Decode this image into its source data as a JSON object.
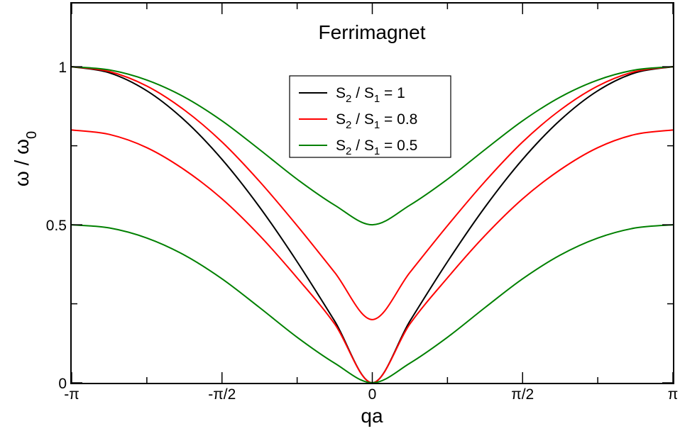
{
  "chart_data": {
    "type": "line",
    "title": "",
    "annotation": "Ferrimagnet",
    "xlabel": "qa",
    "ylabel": {
      "base": "ω / ω",
      "sub": "0"
    },
    "xlim": [
      -3.141592653589793,
      3.141592653589793
    ],
    "ylim": [
      0,
      1.2
    ],
    "x_ticks": [
      {
        "value": -3.141592653589793,
        "label": "-π"
      },
      {
        "value": -1.5707963267948966,
        "label": "-π/2"
      },
      {
        "value": 0,
        "label": "0"
      },
      {
        "value": 1.5707963267948966,
        "label": "π/2"
      },
      {
        "value": 3.141592653589793,
        "label": "π"
      }
    ],
    "y_ticks": [
      {
        "value": 0,
        "label": "0"
      },
      {
        "value": 0.5,
        "label": "0.5"
      },
      {
        "value": 1,
        "label": "1"
      }
    ],
    "grid": false,
    "legend_position": "upper-center",
    "series": [
      {
        "legend": {
          "pre": "S",
          "sub1": "2",
          "mid": " / S",
          "sub2": "1",
          "post": " = 1"
        },
        "color": "#000000",
        "branches": [
          {
            "x": [
              -3.1416,
              -2.7489,
              -2.3562,
              -1.9635,
              -1.5708,
              -1.1781,
              -0.7854,
              -0.3927,
              0,
              0.3927,
              0.7854,
              1.1781,
              1.5708,
              1.9635,
              2.3562,
              2.7489,
              3.1416
            ],
            "y": [
              1.0,
              0.981,
              0.924,
              0.831,
              0.707,
              0.556,
              0.383,
              0.195,
              0.0,
              0.195,
              0.383,
              0.556,
              0.707,
              0.831,
              0.924,
              0.981,
              1.0
            ]
          }
        ]
      },
      {
        "legend": {
          "pre": "S",
          "sub1": "2",
          "mid": " / S",
          "sub2": "1",
          "post": " = 0.8"
        },
        "color": "#ff0000",
        "branches": [
          {
            "x": [
              -3.1416,
              -2.7489,
              -2.3562,
              -1.9635,
              -1.5708,
              -1.1781,
              -0.7854,
              -0.3927,
              0,
              0.3927,
              0.7854,
              1.1781,
              1.5708,
              1.9635,
              2.3562,
              2.7489,
              3.1416
            ],
            "y": [
              1.0,
              0.985,
              0.939,
              0.863,
              0.762,
              0.637,
              0.497,
              0.349,
              0.2,
              0.349,
              0.497,
              0.637,
              0.762,
              0.863,
              0.939,
              0.985,
              1.0
            ]
          },
          {
            "x": [
              -3.1416,
              -2.7489,
              -2.3562,
              -1.9635,
              -1.5708,
              -1.1781,
              -0.7854,
              -0.3927,
              0,
              0.3927,
              0.7854,
              1.1781,
              1.5708,
              1.9635,
              2.3562,
              2.7489,
              3.1416
            ],
            "y": [
              0.8,
              0.786,
              0.744,
              0.674,
              0.582,
              0.466,
              0.332,
              0.186,
              0.0,
              0.186,
              0.332,
              0.466,
              0.582,
              0.674,
              0.744,
              0.786,
              0.8
            ]
          }
        ]
      },
      {
        "legend": {
          "pre": "S",
          "sub1": "2",
          "mid": " / S",
          "sub2": "1",
          "post": " = 0.5"
        },
        "color": "#008000",
        "branches": [
          {
            "x": [
              -3.1416,
              -2.7489,
              -2.3562,
              -1.9635,
              -1.5708,
              -1.1781,
              -0.7854,
              -0.3927,
              0,
              0.3927,
              0.7854,
              1.1781,
              1.5708,
              1.9635,
              2.3562,
              2.7489,
              3.1416
            ],
            "y": [
              1.0,
              0.99,
              0.958,
              0.904,
              0.829,
              0.738,
              0.644,
              0.562,
              0.5,
              0.562,
              0.644,
              0.738,
              0.829,
              0.904,
              0.958,
              0.99,
              1.0
            ]
          },
          {
            "x": [
              -3.1416,
              -2.7489,
              -2.3562,
              -1.9635,
              -1.5708,
              -1.1781,
              -0.7854,
              -0.3927,
              0,
              0.3927,
              0.7854,
              1.1781,
              1.5708,
              1.9635,
              2.3562,
              2.7489,
              3.1416
            ],
            "y": [
              0.5,
              0.49,
              0.458,
              0.404,
              0.329,
              0.238,
              0.144,
              0.062,
              0.0,
              0.062,
              0.144,
              0.238,
              0.329,
              0.404,
              0.458,
              0.49,
              0.5
            ]
          }
        ]
      }
    ]
  }
}
